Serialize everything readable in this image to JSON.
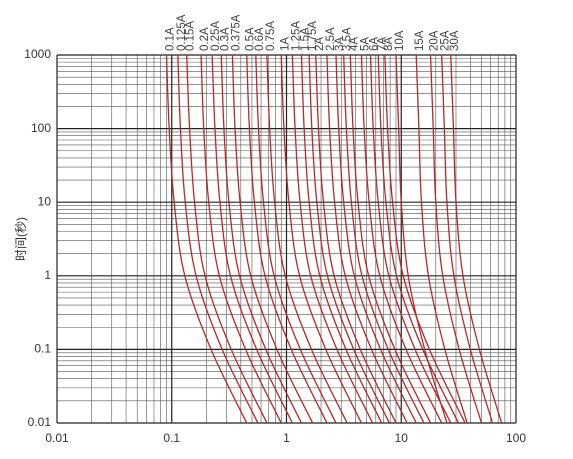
{
  "chart_data": {
    "type": "line",
    "x_label": null,
    "y_label": "时间(秒)",
    "log_x": true,
    "log_y": true,
    "grid": true,
    "xlim": [
      0.01,
      100
    ],
    "ylim": [
      0.01,
      1000
    ],
    "xticks": [
      0.01,
      0.1,
      1,
      10,
      100
    ],
    "yticks": [
      0.01,
      0.1,
      1,
      10,
      100,
      1000
    ],
    "series": [
      {
        "name": "0.1A",
        "color": "#b22a2a",
        "x": [
          0.09,
          0.095,
          0.105,
          0.13,
          0.22,
          0.45
        ],
        "values": [
          1000,
          100,
          10,
          1,
          0.1,
          0.01
        ]
      },
      {
        "name": "0.125A",
        "color": "#b22a2a",
        "x": [
          0.113,
          0.119,
          0.131,
          0.163,
          0.275,
          0.563
        ],
        "values": [
          1000,
          100,
          10,
          1,
          0.1,
          0.01
        ]
      },
      {
        "name": "0.15A",
        "color": "#b22a2a",
        "x": [
          0.135,
          0.143,
          0.158,
          0.195,
          0.33,
          0.675
        ],
        "values": [
          1000,
          100,
          10,
          1,
          0.1,
          0.01
        ]
      },
      {
        "name": "0.2A",
        "color": "#b22a2a",
        "x": [
          0.18,
          0.19,
          0.21,
          0.26,
          0.44,
          0.9
        ],
        "values": [
          1000,
          100,
          10,
          1,
          0.1,
          0.01
        ]
      },
      {
        "name": "0.25A",
        "color": "#b22a2a",
        "x": [
          0.225,
          0.238,
          0.263,
          0.325,
          0.55,
          1.125
        ],
        "values": [
          1000,
          100,
          10,
          1,
          0.1,
          0.01
        ]
      },
      {
        "name": "0.3A",
        "color": "#b22a2a",
        "x": [
          0.27,
          0.285,
          0.315,
          0.39,
          0.66,
          1.35
        ],
        "values": [
          1000,
          100,
          10,
          1,
          0.1,
          0.01
        ]
      },
      {
        "name": "0.375A",
        "color": "#b22a2a",
        "x": [
          0.338,
          0.356,
          0.394,
          0.488,
          0.825,
          1.688
        ],
        "values": [
          1000,
          100,
          10,
          1,
          0.1,
          0.01
        ]
      },
      {
        "name": "0.5A",
        "color": "#b22a2a",
        "x": [
          0.45,
          0.475,
          0.525,
          0.65,
          1.1,
          2.25
        ],
        "values": [
          1000,
          100,
          10,
          1,
          0.1,
          0.01
        ]
      },
      {
        "name": "0.6A",
        "color": "#b22a2a",
        "x": [
          0.54,
          0.57,
          0.63,
          0.78,
          1.32,
          2.7
        ],
        "values": [
          1000,
          100,
          10,
          1,
          0.1,
          0.01
        ]
      },
      {
        "name": "0.75A",
        "color": "#b22a2a",
        "x": [
          0.675,
          0.713,
          0.788,
          0.975,
          1.65,
          3.375
        ],
        "values": [
          1000,
          100,
          10,
          1,
          0.1,
          0.01
        ]
      },
      {
        "name": "1A",
        "color": "#b22a2a",
        "x": [
          0.9,
          0.95,
          1.05,
          1.3,
          2.2,
          4.5
        ],
        "values": [
          1000,
          100,
          10,
          1,
          0.1,
          0.01
        ]
      },
      {
        "name": "1.25A",
        "color": "#b22a2a",
        "x": [
          1.125,
          1.188,
          1.313,
          1.625,
          2.75,
          5.625
        ],
        "values": [
          1000,
          100,
          10,
          1,
          0.1,
          0.01
        ]
      },
      {
        "name": "1.5A",
        "color": "#b22a2a",
        "x": [
          1.35,
          1.425,
          1.575,
          1.95,
          3.3,
          6.75
        ],
        "values": [
          1000,
          100,
          10,
          1,
          0.1,
          0.01
        ]
      },
      {
        "name": "1.75A",
        "color": "#b22a2a",
        "x": [
          1.575,
          1.663,
          1.838,
          2.275,
          3.85,
          7.875
        ],
        "values": [
          1000,
          100,
          10,
          1,
          0.1,
          0.01
        ]
      },
      {
        "name": "2A",
        "color": "#b22a2a",
        "x": [
          1.8,
          1.9,
          2.1,
          2.6,
          4.4,
          9
        ],
        "values": [
          1000,
          100,
          10,
          1,
          0.1,
          0.01
        ]
      },
      {
        "name": "2.5A",
        "color": "#b22a2a",
        "x": [
          2.25,
          2.375,
          2.625,
          3.25,
          5.5,
          11.25
        ],
        "values": [
          1000,
          100,
          10,
          1,
          0.1,
          0.01
        ]
      },
      {
        "name": "3A",
        "color": "#b22a2a",
        "x": [
          2.7,
          2.85,
          3.15,
          3.9,
          6.6,
          13.5
        ],
        "values": [
          1000,
          100,
          10,
          1,
          0.1,
          0.01
        ]
      },
      {
        "name": "3.5A",
        "color": "#b22a2a",
        "x": [
          3.15,
          3.325,
          3.675,
          4.55,
          7.7,
          15.75
        ],
        "values": [
          1000,
          100,
          10,
          1,
          0.1,
          0.01
        ]
      },
      {
        "name": "4A",
        "color": "#b22a2a",
        "x": [
          3.6,
          3.8,
          4.2,
          5.2,
          8.8,
          18
        ],
        "values": [
          1000,
          100,
          10,
          1,
          0.1,
          0.01
        ]
      },
      {
        "name": "5A",
        "color": "#b22a2a",
        "x": [
          4.5,
          4.75,
          5.25,
          6.5,
          11,
          22.5
        ],
        "values": [
          1000,
          100,
          10,
          1,
          0.1,
          0.01
        ]
      },
      {
        "name": "6A",
        "color": "#b22a2a",
        "x": [
          5.4,
          5.7,
          6.3,
          7.8,
          13.2,
          27
        ],
        "values": [
          1000,
          100,
          10,
          1,
          0.1,
          0.01
        ]
      },
      {
        "name": "7A",
        "color": "#b22a2a",
        "x": [
          6.3,
          6.65,
          7.35,
          9.1,
          15.4,
          31.5
        ],
        "values": [
          1000,
          100,
          10,
          1,
          0.1,
          0.01
        ]
      },
      {
        "name": "8A",
        "color": "#b22a2a",
        "x": [
          7.2,
          7.6,
          8.4,
          10.4,
          17.6,
          36
        ],
        "values": [
          1000,
          100,
          10,
          1,
          0.1,
          0.01
        ]
      },
      {
        "name": "10A",
        "color": "#b22a2a",
        "x": [
          9,
          9.5,
          10,
          11.5,
          16,
          25
        ],
        "values": [
          1000,
          100,
          10,
          1,
          0.1,
          0.01
        ]
      },
      {
        "name": "15A",
        "color": "#b22a2a",
        "x": [
          13.5,
          14.25,
          15,
          17.25,
          24,
          37.5
        ],
        "values": [
          1000,
          100,
          10,
          1,
          0.1,
          0.01
        ]
      },
      {
        "name": "20A",
        "color": "#b22a2a",
        "x": [
          18,
          19,
          20,
          23,
          32,
          50
        ],
        "values": [
          1000,
          100,
          10,
          1,
          0.1,
          0.01
        ]
      },
      {
        "name": "25A",
        "color": "#b22a2a",
        "x": [
          22.5,
          23.75,
          25,
          28.75,
          40,
          62.5
        ],
        "values": [
          1000,
          100,
          10,
          1,
          0.1,
          0.01
        ]
      },
      {
        "name": "30A",
        "color": "#b22a2a",
        "x": [
          27,
          28.5,
          30,
          34.5,
          48,
          75
        ],
        "values": [
          1000,
          100,
          10,
          1,
          0.1,
          0.01
        ]
      }
    ]
  }
}
